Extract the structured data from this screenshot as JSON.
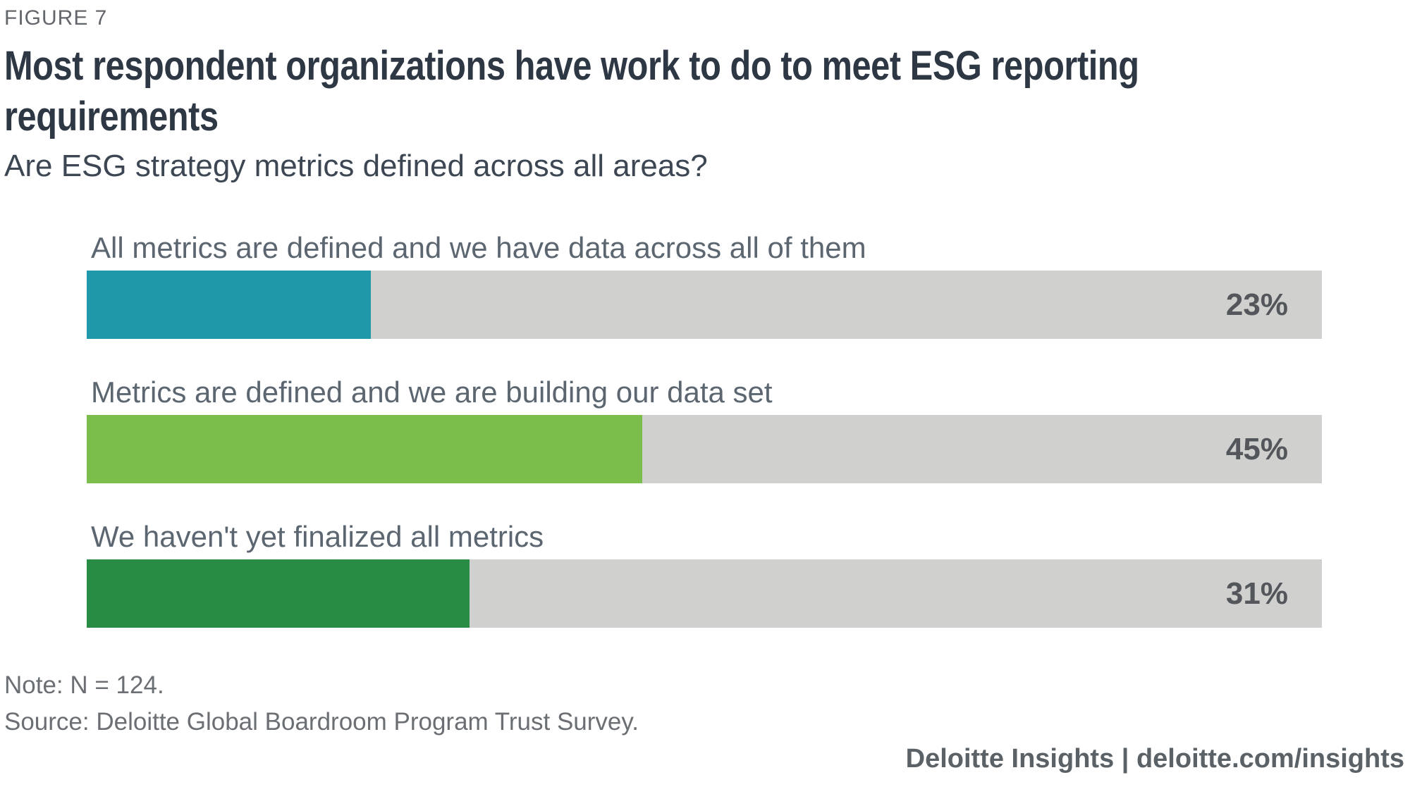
{
  "figure_label": "FIGURE 7",
  "title_line1": "Most respondent organizations have work to do to meet ESG reporting",
  "title_line2": "requirements",
  "subtitle": "Are ESG strategy metrics defined across all areas?",
  "chart_data": {
    "type": "bar",
    "orientation": "horizontal",
    "unit": "percent",
    "xlim": [
      0,
      100
    ],
    "grid": false,
    "legend": "none",
    "categories": [
      "All metrics are defined and we have data across all of them",
      "Metrics are defined and we are building our data set",
      "We haven't yet finalized all metrics"
    ],
    "values": [
      23,
      45,
      31
    ],
    "value_labels": [
      "23%",
      "45%",
      "31%"
    ],
    "colors": [
      "#1f98a9",
      "#7cbe4c",
      "#288c45"
    ],
    "track_color": "#d0d0ce"
  },
  "note": "Note: N = 124.",
  "source": "Source: Deloitte Global Boardroom Program Trust Survey.",
  "footer": "Deloitte Insights | deloitte.com/insights"
}
